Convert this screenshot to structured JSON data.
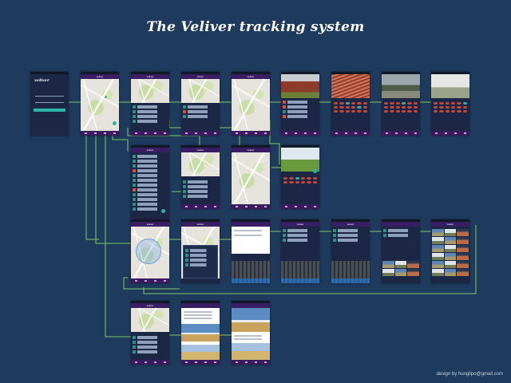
{
  "title": "The Veliver tracking system",
  "credit": "design by hunglipo@gmail.com",
  "app": {
    "logo_text": "veliver",
    "appbar_label": "veliver"
  },
  "colors": {
    "background": "#1e3a5c",
    "connector": "#7fc96a",
    "accent": "#2bb7a8",
    "appbar": "#3a1e63"
  },
  "screens": [
    {
      "id": "s1",
      "kind": "login"
    },
    {
      "id": "s2",
      "kind": "map"
    },
    {
      "id": "s3",
      "kind": "map-list"
    },
    {
      "id": "s4",
      "kind": "map-list2"
    },
    {
      "id": "s5",
      "kind": "map"
    },
    {
      "id": "s6",
      "kind": "photo-calendar"
    },
    {
      "id": "s7",
      "kind": "photo-calendar"
    },
    {
      "id": "s8",
      "kind": "photo-calendar"
    },
    {
      "id": "s9",
      "kind": "photo-calendar"
    },
    {
      "id": "s10",
      "kind": "list"
    },
    {
      "id": "s11",
      "kind": "map-users"
    },
    {
      "id": "s12",
      "kind": "map"
    },
    {
      "id": "s13",
      "kind": "photo-calendar"
    },
    {
      "id": "s14",
      "kind": "map-radius"
    },
    {
      "id": "s15",
      "kind": "map-dialog"
    },
    {
      "id": "s16",
      "kind": "compose-keyboard"
    },
    {
      "id": "s17",
      "kind": "list-keyboard"
    },
    {
      "id": "s18",
      "kind": "list-keyboard"
    },
    {
      "id": "s19",
      "kind": "photo-grid"
    },
    {
      "id": "s20",
      "kind": "photo-grid"
    },
    {
      "id": "s21",
      "kind": "map-users"
    },
    {
      "id": "s22",
      "kind": "post"
    },
    {
      "id": "s23",
      "kind": "post"
    }
  ]
}
